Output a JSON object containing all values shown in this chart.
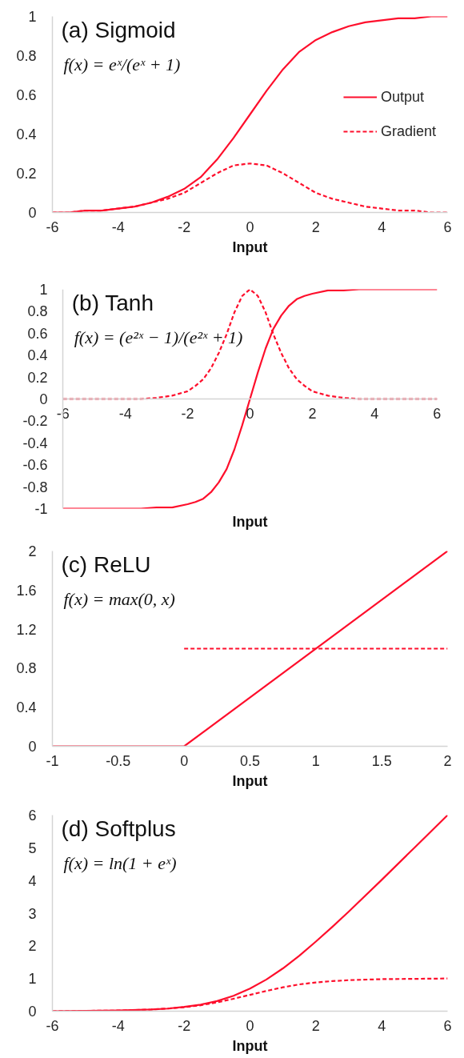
{
  "chart_data": [
    {
      "type": "line",
      "title": "(a) Sigmoid",
      "xlabel": "Input",
      "annotations": [
        "f(x) = eˣ/(eˣ + 1)"
      ],
      "legend": "right",
      "x": [
        -6,
        -5.5,
        -5,
        -4.5,
        -4,
        -3.5,
        -3,
        -2.5,
        -2,
        -1.5,
        -1,
        -0.5,
        0,
        0.5,
        1,
        1.5,
        2,
        2.5,
        3,
        3.5,
        4,
        4.5,
        5,
        5.5,
        6
      ],
      "series": [
        {
          "name": "Output",
          "color": "#fe0f2c",
          "line_style": "solid",
          "values": [
            0,
            0,
            0.01,
            0.01,
            0.02,
            0.03,
            0.05,
            0.08,
            0.12,
            0.18,
            0.27,
            0.38,
            0.5,
            0.62,
            0.73,
            0.82,
            0.88,
            0.92,
            0.95,
            0.97,
            0.98,
            0.99,
            0.99,
            1,
            1
          ]
        },
        {
          "name": "Gradient",
          "color": "#fe0f2c",
          "line_style": "dashed",
          "values": [
            0,
            0,
            0.01,
            0.01,
            0.02,
            0.03,
            0.05,
            0.07,
            0.1,
            0.15,
            0.2,
            0.24,
            0.25,
            0.24,
            0.2,
            0.15,
            0.1,
            0.07,
            0.05,
            0.03,
            0.02,
            0.01,
            0.01,
            0,
            0
          ]
        }
      ],
      "xlim": [
        -6,
        6
      ],
      "xticks": [
        -6,
        -4,
        -2,
        0,
        2,
        4,
        6
      ],
      "ylim": [
        0,
        1
      ],
      "yticks": [
        0,
        0.2,
        0.4,
        0.6,
        0.8,
        1
      ]
    },
    {
      "type": "line",
      "title": "(b) Tanh",
      "xlabel": "Input",
      "annotations": [
        "f(x) = (e²ˣ − 1)/(e²ˣ + 1)"
      ],
      "x": [
        -6,
        -5,
        -4,
        -3.5,
        -3,
        -2.5,
        -2,
        -1.75,
        -1.5,
        -1.25,
        -1,
        -0.75,
        -0.5,
        -0.25,
        0,
        0.25,
        0.5,
        0.75,
        1,
        1.25,
        1.5,
        1.75,
        2,
        2.5,
        3,
        3.5,
        4,
        5,
        6
      ],
      "series": [
        {
          "color": "#fe0f2c",
          "line_style": "solid",
          "values": [
            -1,
            -1,
            -1,
            -1,
            -0.99,
            -0.99,
            -0.96,
            -0.94,
            -0.91,
            -0.85,
            -0.76,
            -0.64,
            -0.46,
            -0.24,
            0,
            0.24,
            0.46,
            0.64,
            0.76,
            0.85,
            0.91,
            0.94,
            0.96,
            0.99,
            0.99,
            1,
            1,
            1,
            1
          ]
        },
        {
          "color": "#fe0f2c",
          "line_style": "dashed",
          "values": [
            0,
            0,
            0,
            0,
            0.01,
            0.03,
            0.07,
            0.12,
            0.18,
            0.28,
            0.42,
            0.59,
            0.79,
            0.94,
            1,
            0.94,
            0.79,
            0.59,
            0.42,
            0.28,
            0.18,
            0.12,
            0.07,
            0.03,
            0.01,
            0,
            0,
            0,
            0
          ]
        }
      ],
      "xlim": [
        -6,
        6
      ],
      "xticks": [
        -6,
        -4,
        -2,
        0,
        2,
        4,
        6
      ],
      "ylim": [
        -1,
        1
      ],
      "yticks": [
        -1,
        -0.8,
        -0.6,
        -0.4,
        -0.2,
        0,
        0.2,
        0.4,
        0.6,
        0.8,
        1
      ]
    },
    {
      "type": "line",
      "title": "(c) ReLU",
      "xlabel": "Input",
      "annotations": [
        "f(x) = max(0, x)"
      ],
      "series": [
        {
          "color": "#fe0f2c",
          "line_style": "solid",
          "x": [
            -1,
            0,
            2
          ],
          "values": [
            0,
            0,
            2
          ]
        },
        {
          "color": "#fe0f2c",
          "line_style": "dashed",
          "x": [
            0,
            2
          ],
          "values": [
            1,
            1
          ]
        }
      ],
      "xlim": [
        -1,
        2
      ],
      "xticks": [
        -1,
        -0.5,
        0,
        0.5,
        1,
        1.5,
        2
      ],
      "ylim": [
        0,
        2
      ],
      "yticks": [
        0,
        0.4,
        0.8,
        1.2,
        1.6,
        2
      ]
    },
    {
      "type": "line",
      "title": "(d) Softplus",
      "xlabel": "Input",
      "annotations": [
        "f(x) = ln(1 + eˣ)"
      ],
      "x": [
        -6,
        -5,
        -4,
        -3,
        -2.5,
        -2,
        -1.5,
        -1,
        -0.5,
        0,
        0.5,
        1,
        1.5,
        2,
        2.5,
        3,
        4,
        5,
        6
      ],
      "series": [
        {
          "color": "#fe0f2c",
          "line_style": "solid",
          "values": [
            0,
            0.01,
            0.02,
            0.05,
            0.08,
            0.13,
            0.2,
            0.31,
            0.47,
            0.69,
            0.97,
            1.31,
            1.7,
            2.13,
            2.58,
            3.05,
            4.02,
            5.01,
            6
          ]
        },
        {
          "color": "#fe0f2c",
          "line_style": "dashed",
          "values": [
            0,
            0.01,
            0.02,
            0.05,
            0.08,
            0.12,
            0.18,
            0.27,
            0.38,
            0.5,
            0.62,
            0.73,
            0.82,
            0.88,
            0.92,
            0.95,
            0.98,
            0.99,
            1
          ]
        }
      ],
      "xlim": [
        -6,
        6
      ],
      "xticks": [
        -6,
        -4,
        -2,
        0,
        2,
        4,
        6
      ],
      "ylim": [
        0,
        6
      ],
      "yticks": [
        0,
        1,
        2,
        3,
        4,
        5,
        6
      ]
    }
  ]
}
